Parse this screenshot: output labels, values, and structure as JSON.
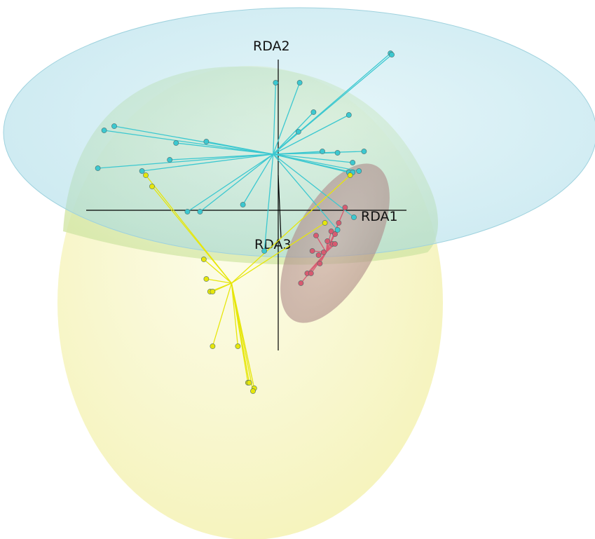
{
  "chart_data": {
    "type": "scatter",
    "projection": "3d",
    "axes": {
      "x": "RDA1",
      "y": "RDA2",
      "z": "RDA3"
    },
    "groups": [
      {
        "color": "#3cc8d0",
        "ellipse_color": "#a6dbe8",
        "centroid": {
          "x": -0.04,
          "y": 0.4
        },
        "points": [
          {
            "x": 0.89,
            "y": 1.12
          },
          {
            "x": 0.9,
            "y": 1.11
          },
          {
            "x": -0.02,
            "y": 0.91
          },
          {
            "x": 0.17,
            "y": 0.91
          },
          {
            "x": 0.28,
            "y": 0.7
          },
          {
            "x": 0.56,
            "y": 0.68
          },
          {
            "x": 0.16,
            "y": 0.56
          },
          {
            "x": -1.3,
            "y": 0.6
          },
          {
            "x": -1.38,
            "y": 0.57
          },
          {
            "x": -0.81,
            "y": 0.48
          },
          {
            "x": -0.57,
            "y": 0.49
          },
          {
            "x": 0.35,
            "y": 0.42
          },
          {
            "x": 0.47,
            "y": 0.41
          },
          {
            "x": 0.68,
            "y": 0.42
          },
          {
            "x": 0.59,
            "y": 0.34
          },
          {
            "x": -0.86,
            "y": 0.36
          },
          {
            "x": -1.43,
            "y": 0.3
          },
          {
            "x": -1.08,
            "y": 0.28
          },
          {
            "x": 0.56,
            "y": 0.27
          },
          {
            "x": 0.59,
            "y": 0.27
          },
          {
            "x": 0.64,
            "y": 0.28
          },
          {
            "x": -0.28,
            "y": 0.04
          },
          {
            "x": -0.62,
            "y": -0.01
          },
          {
            "x": -0.72,
            "y": -0.01
          },
          {
            "x": 0.6,
            "y": -0.05
          },
          {
            "x": 0.47,
            "y": -0.14
          },
          {
            "x": -0.11,
            "y": -0.29
          }
        ]
      },
      {
        "color": "#e6e60a",
        "ellipse_color": "#f2f0a0",
        "centroid": {
          "x": -0.37,
          "y": -0.52
        },
        "points": [
          {
            "x": 0.57,
            "y": 0.25
          },
          {
            "x": -1.05,
            "y": 0.25
          },
          {
            "x": -1.0,
            "y": 0.17
          },
          {
            "x": 0.37,
            "y": -0.09
          },
          {
            "x": -0.59,
            "y": -0.35
          },
          {
            "x": -0.57,
            "y": -0.49
          },
          {
            "x": -0.54,
            "y": -0.58
          },
          {
            "x": -0.52,
            "y": -0.58
          },
          {
            "x": -0.52,
            "y": -0.97
          },
          {
            "x": -0.32,
            "y": -0.97
          },
          {
            "x": -0.24,
            "y": -1.23
          },
          {
            "x": -0.23,
            "y": -1.23
          },
          {
            "x": -0.19,
            "y": -1.27
          },
          {
            "x": -0.2,
            "y": -1.29
          }
        ]
      },
      {
        "color": "#d85a70",
        "ellipse_color": "#b08080",
        "centroid": {
          "x": 0.38,
          "y": -0.3
        },
        "points": [
          {
            "x": 0.53,
            "y": 0.02
          },
          {
            "x": 0.48,
            "y": -0.09
          },
          {
            "x": 0.42,
            "y": -0.15
          },
          {
            "x": 0.45,
            "y": -0.17
          },
          {
            "x": 0.3,
            "y": -0.18
          },
          {
            "x": 0.39,
            "y": -0.22
          },
          {
            "x": 0.43,
            "y": -0.24
          },
          {
            "x": 0.45,
            "y": -0.24
          },
          {
            "x": 0.27,
            "y": -0.29
          },
          {
            "x": 0.36,
            "y": -0.3
          },
          {
            "x": 0.32,
            "y": -0.32
          },
          {
            "x": 0.33,
            "y": -0.38
          },
          {
            "x": 0.23,
            "y": -0.45
          },
          {
            "x": 0.26,
            "y": -0.45
          },
          {
            "x": 0.18,
            "y": -0.52
          }
        ]
      }
    ]
  }
}
